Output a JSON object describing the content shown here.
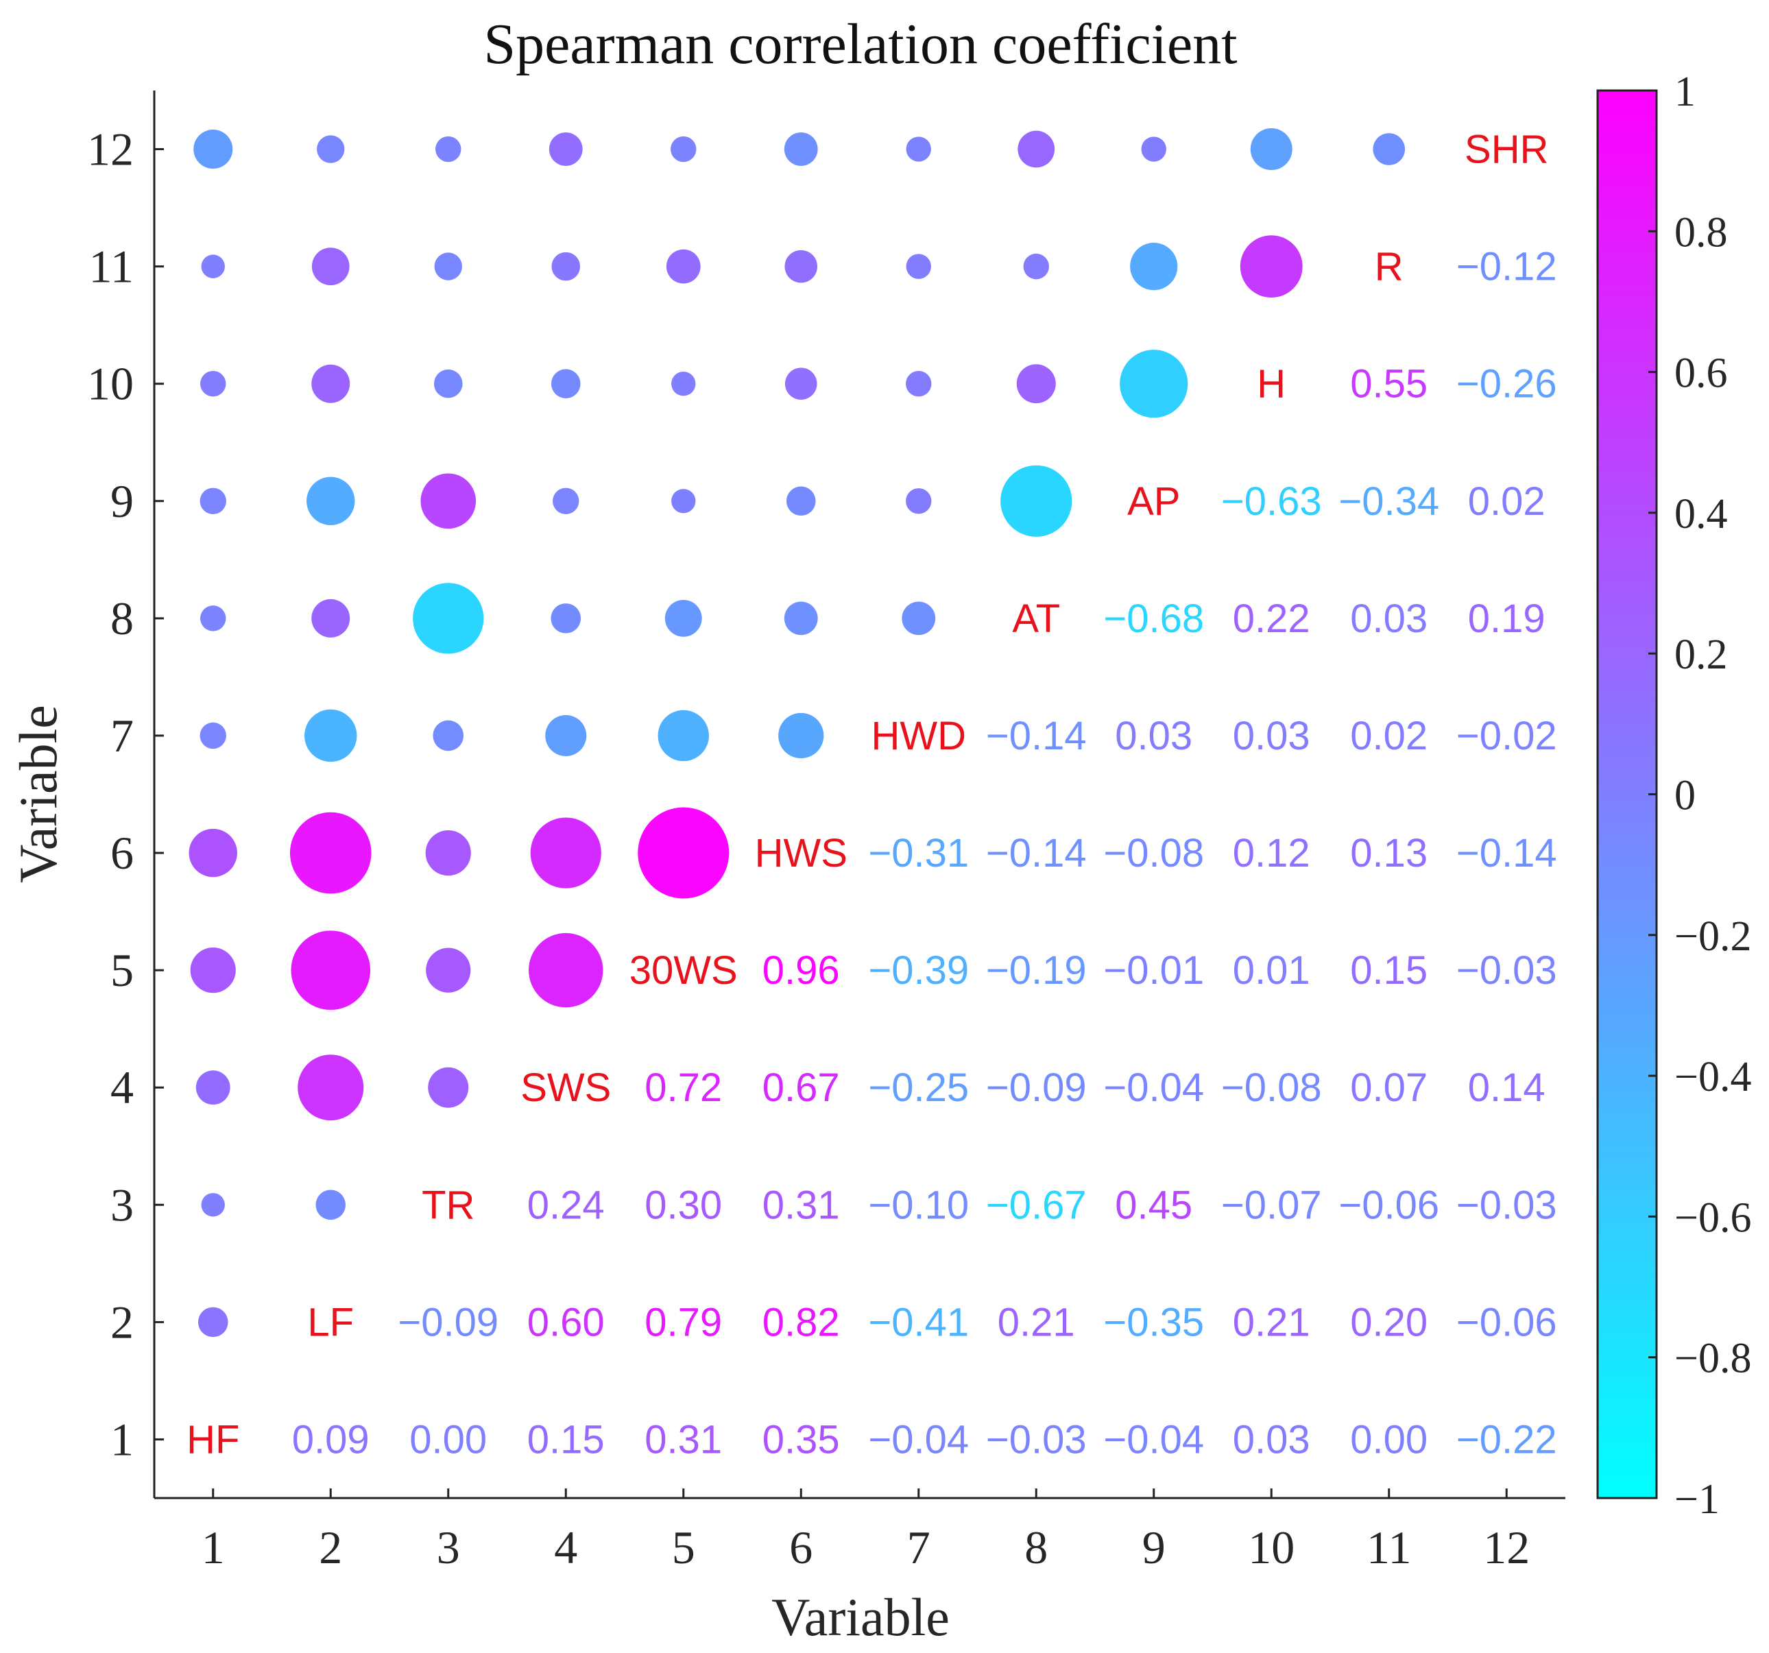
{
  "chart_data": {
    "type": "correlation-matrix",
    "title": "Spearman correlation coefficient",
    "xlabel": "Variable",
    "ylabel": "Variable",
    "x_ticks": [
      "1",
      "2",
      "3",
      "4",
      "5",
      "6",
      "7",
      "8",
      "9",
      "10",
      "11",
      "12"
    ],
    "y_ticks": [
      "1",
      "2",
      "3",
      "4",
      "5",
      "6",
      "7",
      "8",
      "9",
      "10",
      "11",
      "12"
    ],
    "variables": [
      "HF",
      "LF",
      "TR",
      "SWS",
      "30WS",
      "HWS",
      "HWD",
      "AT",
      "AP",
      "H",
      "R",
      "SHR"
    ],
    "matrix": [
      [
        1.0,
        0.09,
        0.0,
        0.15,
        0.31,
        0.35,
        -0.04,
        -0.03,
        -0.04,
        0.03,
        0.0,
        -0.22
      ],
      [
        0.09,
        1.0,
        -0.09,
        0.6,
        0.79,
        0.82,
        -0.41,
        0.21,
        -0.35,
        0.21,
        0.2,
        -0.06
      ],
      [
        0.0,
        -0.09,
        1.0,
        0.24,
        0.3,
        0.31,
        -0.1,
        -0.67,
        0.45,
        -0.07,
        -0.06,
        -0.03
      ],
      [
        0.15,
        0.6,
        0.24,
        1.0,
        0.72,
        0.67,
        -0.25,
        -0.09,
        -0.04,
        -0.08,
        0.07,
        0.14
      ],
      [
        0.31,
        0.79,
        0.3,
        0.72,
        1.0,
        0.96,
        -0.39,
        -0.19,
        -0.01,
        0.01,
        0.15,
        -0.03
      ],
      [
        0.35,
        0.82,
        0.31,
        0.67,
        0.96,
        1.0,
        -0.31,
        -0.14,
        -0.08,
        0.12,
        0.13,
        -0.14
      ],
      [
        -0.04,
        -0.41,
        -0.1,
        -0.25,
        -0.39,
        -0.31,
        1.0,
        -0.14,
        0.03,
        0.03,
        0.02,
        -0.02
      ],
      [
        -0.03,
        0.21,
        -0.67,
        -0.09,
        -0.19,
        -0.14,
        -0.14,
        1.0,
        -0.68,
        0.22,
        0.03,
        0.19
      ],
      [
        -0.04,
        -0.35,
        0.45,
        -0.04,
        -0.01,
        -0.08,
        0.03,
        -0.68,
        1.0,
        -0.63,
        -0.34,
        0.02
      ],
      [
        0.03,
        0.21,
        -0.07,
        -0.08,
        0.01,
        0.12,
        0.03,
        0.22,
        -0.63,
        1.0,
        0.55,
        -0.26
      ],
      [
        0.0,
        0.2,
        -0.06,
        0.07,
        0.15,
        0.13,
        0.02,
        0.03,
        -0.34,
        0.55,
        1.0,
        -0.12
      ],
      [
        -0.22,
        -0.06,
        -0.03,
        0.14,
        -0.03,
        -0.14,
        -0.02,
        0.19,
        0.02,
        -0.26,
        -0.12,
        1.0
      ]
    ],
    "xlim": [
      0.5,
      12.5
    ],
    "ylim": [
      0.5,
      12.5
    ],
    "colorbar": {
      "range": [
        -1,
        1
      ],
      "ticks": [
        1,
        0.8,
        0.6,
        0.4,
        0.2,
        0,
        -0.2,
        -0.4,
        -0.6,
        -0.8,
        -1
      ],
      "tick_labels": [
        "1",
        "0.8",
        "0.6",
        "0.4",
        "0.2",
        "0",
        "−0.2",
        "−0.4",
        "−0.6",
        "−0.8",
        "−1"
      ],
      "low_color": "#00ffff",
      "high_color": "#ff00ff"
    },
    "lower_triangle": "circles sized by |coefficient|, colored by coefficient",
    "upper_triangle": "coefficient values as text",
    "diagonal_label_color": "#e8121c"
  }
}
